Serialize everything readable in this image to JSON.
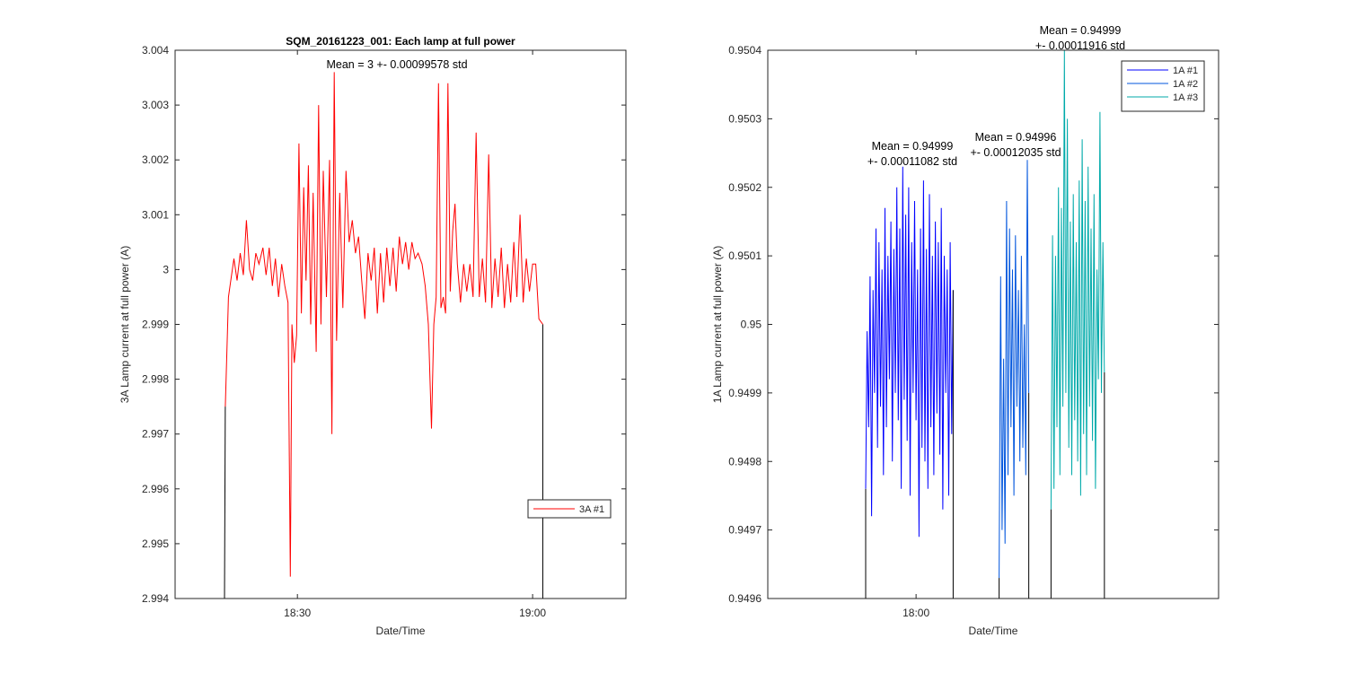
{
  "chart_data": [
    {
      "type": "line",
      "title": "SQM_20161223_001: Each lamp at full power",
      "xlabel": "Date/Time",
      "ylabel": "3A Lamp current at full power (A)",
      "x_units": "minutes after 18:00",
      "xlim": [
        14.4,
        71.9
      ],
      "ylim": [
        2.994,
        3.004
      ],
      "xticks": [
        {
          "value": 30,
          "label": "18:30"
        },
        {
          "value": 60,
          "label": "19:00"
        }
      ],
      "yticks": [
        {
          "value": 2.994,
          "label": "2.994"
        },
        {
          "value": 2.995,
          "label": "2.995"
        },
        {
          "value": 2.996,
          "label": "2.996"
        },
        {
          "value": 2.997,
          "label": "2.997"
        },
        {
          "value": 2.998,
          "label": "2.998"
        },
        {
          "value": 2.999,
          "label": "2.999"
        },
        {
          "value": 3.0,
          "label": "3"
        },
        {
          "value": 3.001,
          "label": "3.001"
        },
        {
          "value": 3.002,
          "label": "3.002"
        },
        {
          "value": 3.003,
          "label": "3.003"
        },
        {
          "value": 3.004,
          "label": "3.004"
        }
      ],
      "legend_position": "bottom-right",
      "annotations": [
        {
          "text": "Mean = 3 +- 0.00099578 std"
        }
      ],
      "series": [
        {
          "name": "3A #1",
          "color": "#ff0000",
          "points": [
            [
              20.7,
              2.99
            ],
            [
              20.8,
              2.9975
            ],
            [
              21.2,
              2.9995
            ],
            [
              21.5,
              2.9998
            ],
            [
              21.9,
              3.0002
            ],
            [
              22.3,
              2.9998
            ],
            [
              22.7,
              3.0003
            ],
            [
              23.1,
              2.9999
            ],
            [
              23.5,
              3.0009
            ],
            [
              23.9,
              3.0
            ],
            [
              24.3,
              2.9998
            ],
            [
              24.7,
              3.0003
            ],
            [
              25.1,
              3.0001
            ],
            [
              25.6,
              3.0004
            ],
            [
              26.0,
              2.9999
            ],
            [
              26.4,
              3.0004
            ],
            [
              26.8,
              2.9997
            ],
            [
              27.2,
              3.0002
            ],
            [
              27.6,
              2.9995
            ],
            [
              28.0,
              3.0001
            ],
            [
              28.4,
              2.9997
            ],
            [
              28.8,
              2.9994
            ],
            [
              29.1,
              2.9944
            ],
            [
              29.3,
              2.999
            ],
            [
              29.6,
              2.9983
            ],
            [
              29.9,
              2.9988
            ],
            [
              30.2,
              3.0023
            ],
            [
              30.5,
              2.9992
            ],
            [
              30.8,
              3.0015
            ],
            [
              31.1,
              2.9998
            ],
            [
              31.4,
              3.0019
            ],
            [
              31.7,
              2.999
            ],
            [
              32.0,
              3.0014
            ],
            [
              32.4,
              2.9985
            ],
            [
              32.7,
              3.003
            ],
            [
              33.0,
              2.999
            ],
            [
              33.3,
              3.0018
            ],
            [
              33.7,
              2.9995
            ],
            [
              34.1,
              3.002
            ],
            [
              34.4,
              2.997
            ],
            [
              34.7,
              3.0036
            ],
            [
              35.0,
              2.9987
            ],
            [
              35.4,
              3.0014
            ],
            [
              35.8,
              2.9993
            ],
            [
              36.2,
              3.0018
            ],
            [
              36.6,
              3.0005
            ],
            [
              37.0,
              3.0009
            ],
            [
              37.4,
              3.0003
            ],
            [
              37.8,
              3.0006
            ],
            [
              38.2,
              2.9998
            ],
            [
              38.6,
              2.9991
            ],
            [
              39.0,
              3.0003
            ],
            [
              39.4,
              2.9998
            ],
            [
              39.8,
              3.0004
            ],
            [
              40.2,
              2.9992
            ],
            [
              40.6,
              3.0003
            ],
            [
              41.0,
              2.9994
            ],
            [
              41.4,
              3.0004
            ],
            [
              41.8,
              2.9997
            ],
            [
              42.2,
              3.0004
            ],
            [
              42.6,
              2.9996
            ],
            [
              43.0,
              3.0006
            ],
            [
              43.4,
              3.0001
            ],
            [
              43.8,
              3.0005
            ],
            [
              44.2,
              3.0
            ],
            [
              44.6,
              3.0005
            ],
            [
              45.0,
              3.0002
            ],
            [
              45.4,
              3.0003
            ],
            [
              45.9,
              3.0001
            ],
            [
              46.3,
              2.9997
            ],
            [
              46.7,
              2.999
            ],
            [
              47.1,
              2.9971
            ],
            [
              47.4,
              2.999
            ],
            [
              47.7,
              2.9995
            ],
            [
              48.0,
              3.0034
            ],
            [
              48.3,
              2.9993
            ],
            [
              48.6,
              2.9995
            ],
            [
              48.9,
              2.9992
            ],
            [
              49.2,
              3.0034
            ],
            [
              49.5,
              2.9996
            ],
            [
              49.8,
              3.0007
            ],
            [
              50.1,
              3.0012
            ],
            [
              50.4,
              3.0001
            ],
            [
              50.8,
              2.9994
            ],
            [
              51.2,
              3.0001
            ],
            [
              51.6,
              2.9996
            ],
            [
              52.0,
              3.0001
            ],
            [
              52.4,
              2.9995
            ],
            [
              52.8,
              3.0025
            ],
            [
              53.2,
              2.9995
            ],
            [
              53.6,
              3.0002
            ],
            [
              54.0,
              2.9994
            ],
            [
              54.4,
              3.0021
            ],
            [
              54.8,
              2.9993
            ],
            [
              55.2,
              3.0002
            ],
            [
              55.6,
              2.9995
            ],
            [
              56.0,
              3.0004
            ],
            [
              56.4,
              2.9993
            ],
            [
              56.8,
              3.0001
            ],
            [
              57.2,
              2.9994
            ],
            [
              57.6,
              3.0005
            ],
            [
              58.0,
              2.9995
            ],
            [
              58.4,
              3.001
            ],
            [
              58.8,
              2.9994
            ],
            [
              59.2,
              3.0002
            ],
            [
              59.6,
              2.9996
            ],
            [
              60.0,
              3.0001
            ],
            [
              60.4,
              3.0001
            ],
            [
              60.8,
              2.9991
            ],
            [
              61.3,
              2.999
            ],
            [
              61.3,
              2.99
            ]
          ]
        }
      ]
    },
    {
      "type": "line",
      "title": "",
      "xlabel": "Date/Time",
      "ylabel": "1A Lamp current at full power (A)",
      "x_units": "minutes after 18:00",
      "xlim": [
        -10,
        20.4
      ],
      "ylim": [
        0.9496,
        0.9504
      ],
      "xticks": [
        {
          "value": 0,
          "label": "18:00"
        }
      ],
      "yticks": [
        {
          "value": 0.9496,
          "label": "0.9496"
        },
        {
          "value": 0.9497,
          "label": "0.9497"
        },
        {
          "value": 0.9498,
          "label": "0.9498"
        },
        {
          "value": 0.9499,
          "label": "0.9499"
        },
        {
          "value": 0.95,
          "label": "0.95"
        },
        {
          "value": 0.9501,
          "label": "0.9501"
        },
        {
          "value": 0.9502,
          "label": "0.9502"
        },
        {
          "value": 0.9503,
          "label": "0.9503"
        },
        {
          "value": 0.9504,
          "label": "0.9504"
        }
      ],
      "legend_position": "top-right",
      "annotations": [
        {
          "line1": "Mean = 0.94999",
          "line2": "+- 0.00011082 std"
        },
        {
          "line1": "Mean = 0.94996",
          "line2": "+- 0.00012035 std"
        },
        {
          "line1": "Mean = 0.94999",
          "line2": "+- 0.00011916 std"
        }
      ],
      "series": [
        {
          "name": "1A #1",
          "color": "#0000ff",
          "points": [
            [
              -3.4,
              0.949
            ],
            [
              -3.4,
              0.94976
            ],
            [
              -3.3,
              0.94999
            ],
            [
              -3.2,
              0.94985
            ],
            [
              -3.1,
              0.95007
            ],
            [
              -3.0,
              0.94972
            ],
            [
              -2.9,
              0.95005
            ],
            [
              -2.8,
              0.9499
            ],
            [
              -2.7,
              0.95014
            ],
            [
              -2.6,
              0.94982
            ],
            [
              -2.5,
              0.95012
            ],
            [
              -2.4,
              0.94988
            ],
            [
              -2.3,
              0.95008
            ],
            [
              -2.2,
              0.94978
            ],
            [
              -2.1,
              0.95017
            ],
            [
              -2.0,
              0.94985
            ],
            [
              -1.9,
              0.9501
            ],
            [
              -1.8,
              0.94992
            ],
            [
              -1.7,
              0.95015
            ],
            [
              -1.6,
              0.9498
            ],
            [
              -1.5,
              0.95011
            ],
            [
              -1.4,
              0.9499
            ],
            [
              -1.3,
              0.9502
            ],
            [
              -1.2,
              0.94986
            ],
            [
              -1.1,
              0.95014
            ],
            [
              -1.0,
              0.94976
            ],
            [
              -0.9,
              0.95023
            ],
            [
              -0.8,
              0.94989
            ],
            [
              -0.7,
              0.95016
            ],
            [
              -0.6,
              0.94983
            ],
            [
              -0.5,
              0.9502
            ],
            [
              -0.4,
              0.94975
            ],
            [
              -0.3,
              0.95012
            ],
            [
              -0.2,
              0.9499
            ],
            [
              -0.1,
              0.95018
            ],
            [
              0.0,
              0.94986
            ],
            [
              0.1,
              0.95008
            ],
            [
              0.2,
              0.94969
            ],
            [
              0.3,
              0.95014
            ],
            [
              0.4,
              0.94982
            ],
            [
              0.5,
              0.95021
            ],
            [
              0.6,
              0.9498
            ],
            [
              0.7,
              0.95011
            ],
            [
              0.8,
              0.94976
            ],
            [
              0.9,
              0.95019
            ],
            [
              1.0,
              0.94985
            ],
            [
              1.1,
              0.9501
            ],
            [
              1.2,
              0.94978
            ],
            [
              1.3,
              0.95015
            ],
            [
              1.4,
              0.94987
            ],
            [
              1.5,
              0.95012
            ],
            [
              1.6,
              0.94981
            ],
            [
              1.7,
              0.95017
            ],
            [
              1.8,
              0.94973
            ],
            [
              1.9,
              0.9501
            ],
            [
              2.0,
              0.9499
            ],
            [
              2.1,
              0.95008
            ],
            [
              2.2,
              0.94975
            ],
            [
              2.3,
              0.95012
            ],
            [
              2.4,
              0.94984
            ],
            [
              2.5,
              0.95005
            ],
            [
              2.5,
              0.949
            ]
          ]
        },
        {
          "name": "1A #2",
          "color": "#0055dd",
          "points": [
            [
              5.6,
              0.949
            ],
            [
              5.6,
              0.94963
            ],
            [
              5.7,
              0.95007
            ],
            [
              5.8,
              0.9497
            ],
            [
              5.9,
              0.94995
            ],
            [
              6.0,
              0.94968
            ],
            [
              6.1,
              0.95018
            ],
            [
              6.2,
              0.94978
            ],
            [
              6.3,
              0.95014
            ],
            [
              6.4,
              0.94985
            ],
            [
              6.5,
              0.95008
            ],
            [
              6.6,
              0.94975
            ],
            [
              6.7,
              0.95013
            ],
            [
              6.8,
              0.94988
            ],
            [
              6.9,
              0.95005
            ],
            [
              7.0,
              0.9498
            ],
            [
              7.1,
              0.9501
            ],
            [
              7.2,
              0.94982
            ],
            [
              7.3,
              0.95
            ],
            [
              7.4,
              0.94978
            ],
            [
              7.5,
              0.95024
            ],
            [
              7.6,
              0.9499
            ],
            [
              7.6,
              0.949
            ]
          ]
        },
        {
          "name": "1A #3",
          "color": "#00aaaa",
          "points": [
            [
              9.1,
              0.949
            ],
            [
              9.1,
              0.94973
            ],
            [
              9.2,
              0.95013
            ],
            [
              9.3,
              0.94976
            ],
            [
              9.4,
              0.9501
            ],
            [
              9.5,
              0.94985
            ],
            [
              9.6,
              0.9502
            ],
            [
              9.7,
              0.94978
            ],
            [
              9.8,
              0.95017
            ],
            [
              9.9,
              0.94988
            ],
            [
              10.0,
              0.9504
            ],
            [
              10.1,
              0.9499
            ],
            [
              10.2,
              0.9503
            ],
            [
              10.3,
              0.94982
            ],
            [
              10.4,
              0.95015
            ],
            [
              10.5,
              0.94978
            ],
            [
              10.6,
              0.95019
            ],
            [
              10.7,
              0.94986
            ],
            [
              10.8,
              0.95012
            ],
            [
              10.9,
              0.9498
            ],
            [
              11.0,
              0.95021
            ],
            [
              11.1,
              0.94975
            ],
            [
              11.2,
              0.95027
            ],
            [
              11.3,
              0.94984
            ],
            [
              11.4,
              0.95018
            ],
            [
              11.5,
              0.94978
            ],
            [
              11.6,
              0.95023
            ],
            [
              11.7,
              0.94988
            ],
            [
              11.8,
              0.95014
            ],
            [
              11.9,
              0.94983
            ],
            [
              12.0,
              0.95019
            ],
            [
              12.1,
              0.94976
            ],
            [
              12.2,
              0.95008
            ],
            [
              12.3,
              0.94992
            ],
            [
              12.4,
              0.95031
            ],
            [
              12.5,
              0.9499
            ],
            [
              12.6,
              0.95012
            ],
            [
              12.7,
              0.94993
            ],
            [
              12.7,
              0.949
            ]
          ]
        }
      ]
    }
  ]
}
